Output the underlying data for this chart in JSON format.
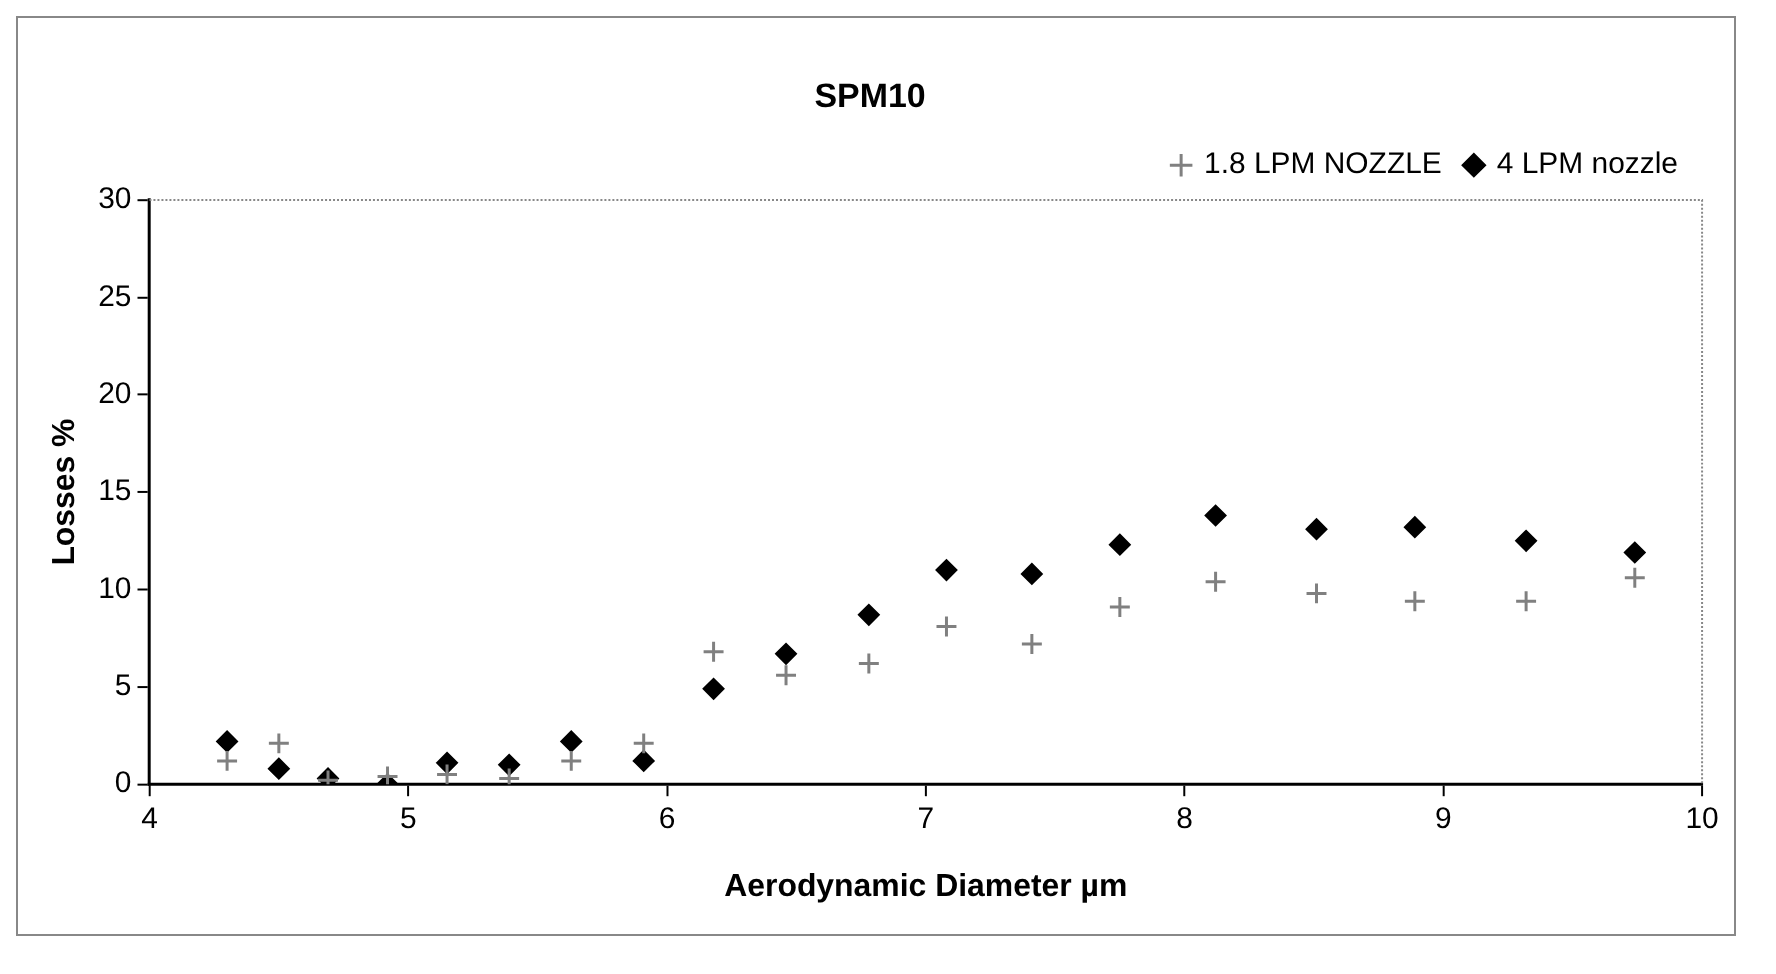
{
  "chart_data": {
    "type": "scatter",
    "title": "SPM10",
    "xlabel": "Aerodynamic Diameter µm",
    "ylabel": "Losses %",
    "xlim": [
      4,
      10
    ],
    "xticks": [
      4,
      5,
      6,
      7,
      8,
      9,
      10
    ],
    "ylim": [
      0,
      30
    ],
    "yticks": [
      0,
      5,
      10,
      15,
      20,
      25,
      30
    ],
    "grid": false,
    "legend": "top right",
    "series": [
      {
        "name": "4 LPM nozzle",
        "color": "#000000",
        "marker": "diamond",
        "x": [
          4.3,
          4.5,
          4.69,
          4.92,
          5.15,
          5.39,
          5.63,
          5.91,
          6.18,
          6.46,
          6.78,
          7.08,
          7.41,
          7.75,
          8.12,
          8.51,
          8.89,
          9.32,
          9.74
        ],
        "values": [
          2.2,
          0.8,
          0.3,
          0,
          1.1,
          1,
          2.2,
          1.2,
          4.9,
          6.7,
          8.7,
          11,
          10.8,
          12.3,
          13.8,
          13.1,
          13.2,
          12.5,
          11.9
        ]
      },
      {
        "name": "1.8 LPM NOZZLE",
        "color": "#808080",
        "marker": "cross",
        "x": [
          4.3,
          4.5,
          4.69,
          4.92,
          5.15,
          5.39,
          5.63,
          5.91,
          6.18,
          6.46,
          6.78,
          7.08,
          7.41,
          7.75,
          8.12,
          8.51,
          8.89,
          9.32,
          9.74
        ],
        "values": [
          1.2,
          2.1,
          0.2,
          0.4,
          0.5,
          0.3,
          1.2,
          2.1,
          6.8,
          5.6,
          6.2,
          8.1,
          7.2,
          9.1,
          10.4,
          9.8,
          9.4,
          9.4,
          10.6
        ]
      }
    ]
  }
}
